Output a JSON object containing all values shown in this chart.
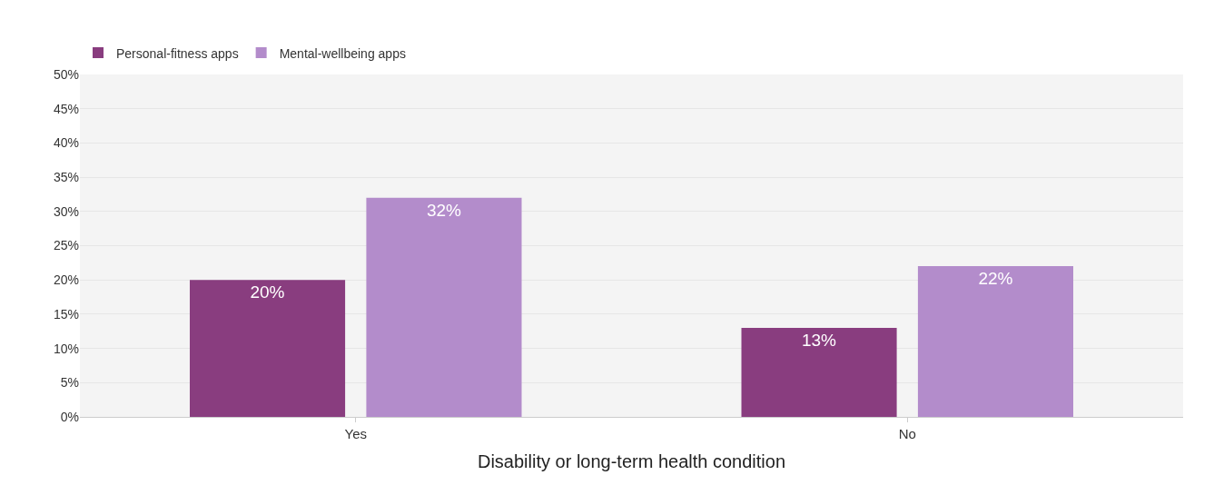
{
  "chart_data": {
    "type": "bar",
    "xlabel": "Disability or long-term health condition",
    "categories": [
      "Yes",
      "No"
    ],
    "series": [
      {
        "name": "Personal-fitness apps",
        "color": "#893d7f",
        "values": [
          20,
          13
        ],
        "value_labels": [
          "20%",
          "13%"
        ]
      },
      {
        "name": "Mental-wellbeing apps",
        "color": "#b38ccb",
        "values": [
          32,
          22
        ],
        "value_labels": [
          "32%",
          "22%"
        ]
      }
    ],
    "ylim": [
      0,
      50
    ],
    "yticks": [
      {
        "value": 0,
        "label": "0%"
      },
      {
        "value": 5,
        "label": "5%"
      },
      {
        "value": 10,
        "label": "10%"
      },
      {
        "value": 15,
        "label": "15%"
      },
      {
        "value": 20,
        "label": "20%"
      },
      {
        "value": 25,
        "label": "25%"
      },
      {
        "value": 30,
        "label": "30%"
      },
      {
        "value": 35,
        "label": "35%"
      },
      {
        "value": 40,
        "label": "40%"
      },
      {
        "value": 45,
        "label": "45%"
      },
      {
        "value": 50,
        "label": "50%"
      }
    ],
    "grid": "y",
    "legend": "top left"
  }
}
